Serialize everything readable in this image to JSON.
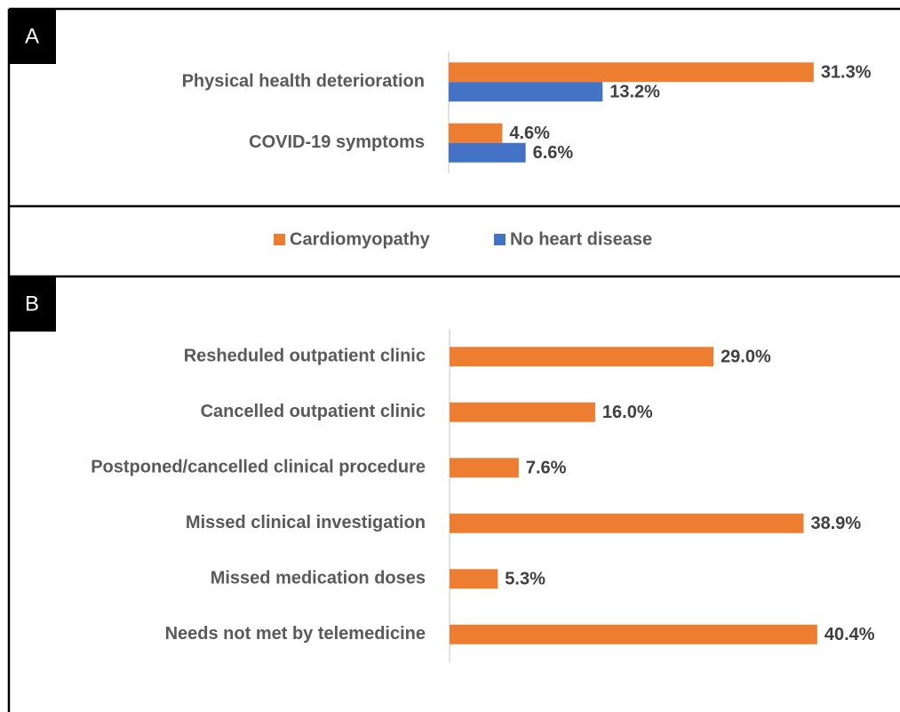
{
  "chart_data": [
    {
      "type": "bar",
      "orientation": "horizontal",
      "panel": "A",
      "categories": [
        "Physical health deterioration",
        "COVID-19 symptoms"
      ],
      "series": [
        {
          "name": "Cardiomyopathy",
          "color": "#ed7d31",
          "values": [
            31.3,
            4.6
          ],
          "value_labels": [
            "31.3%",
            "4.6%"
          ]
        },
        {
          "name": "No heart disease",
          "color": "#4472c4",
          "values": [
            13.2,
            6.6
          ],
          "value_labels": [
            "13.2%",
            "6.6%"
          ]
        }
      ],
      "xlim": [
        0,
        32
      ],
      "legend": "bottom"
    },
    {
      "type": "bar",
      "orientation": "horizontal",
      "panel": "B",
      "categories": [
        "Resheduled outpatient clinic",
        "Cancelled outpatient clinic",
        "Postponed/cancelled clinical procedure",
        "Missed clinical investigation",
        "Missed medication doses",
        "Needs not met by telemedicine"
      ],
      "values": [
        29.0,
        16.0,
        7.6,
        38.9,
        5.3,
        40.4
      ],
      "value_labels": [
        "29.0%",
        "16.0%",
        "7.6%",
        "38.9%",
        "5.3%",
        "40.4%"
      ],
      "color": "#ed7d31",
      "xlim": [
        0,
        41
      ]
    }
  ]
}
